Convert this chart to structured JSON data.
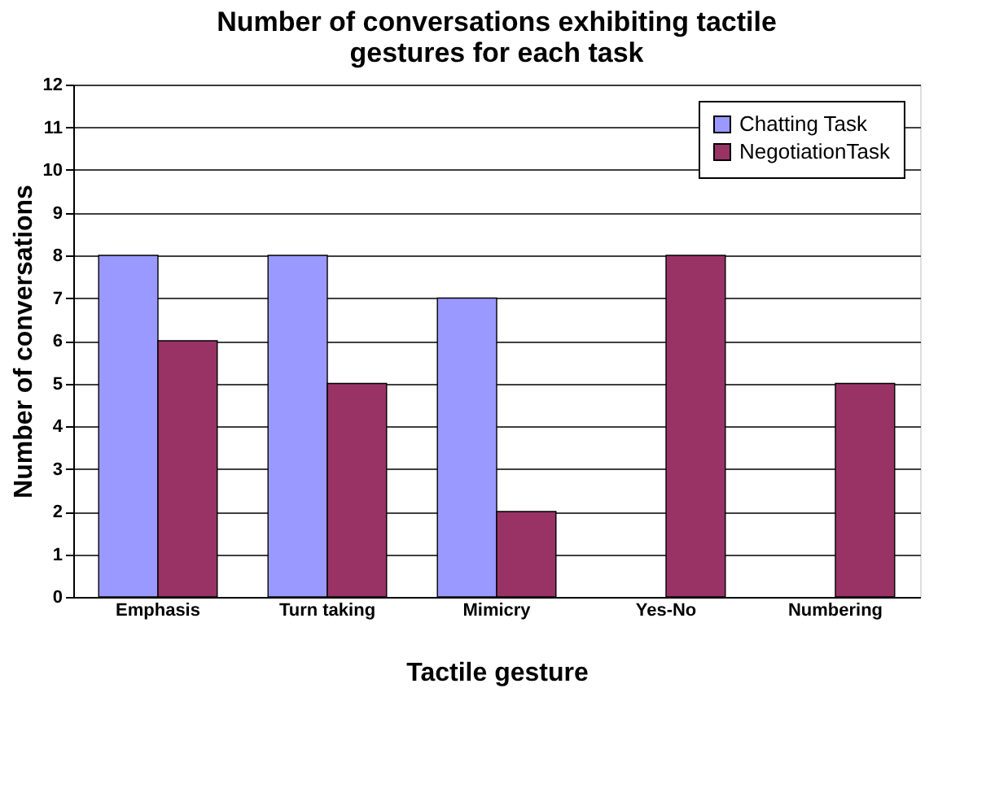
{
  "chart_data": {
    "type": "bar",
    "title": "Number of conversations exhibiting tactile gestures for each task",
    "xlabel": "Tactile gesture",
    "ylabel": "Number of conversations",
    "categories": [
      "Emphasis",
      "Turn taking",
      "Mimicry",
      "Yes-No",
      "Numbering"
    ],
    "series": [
      {
        "name": "Chatting Task",
        "color": "#9999ff",
        "values": [
          8,
          8,
          7,
          null,
          null
        ]
      },
      {
        "name": "NegotiationTask",
        "color": "#993366",
        "values": [
          6,
          5,
          2,
          8,
          5
        ]
      }
    ],
    "ylim": [
      0,
      12
    ],
    "yticks": [
      0,
      1,
      2,
      3,
      4,
      5,
      6,
      7,
      8,
      9,
      10,
      11,
      12
    ],
    "grid": "y",
    "legend": "top right"
  }
}
